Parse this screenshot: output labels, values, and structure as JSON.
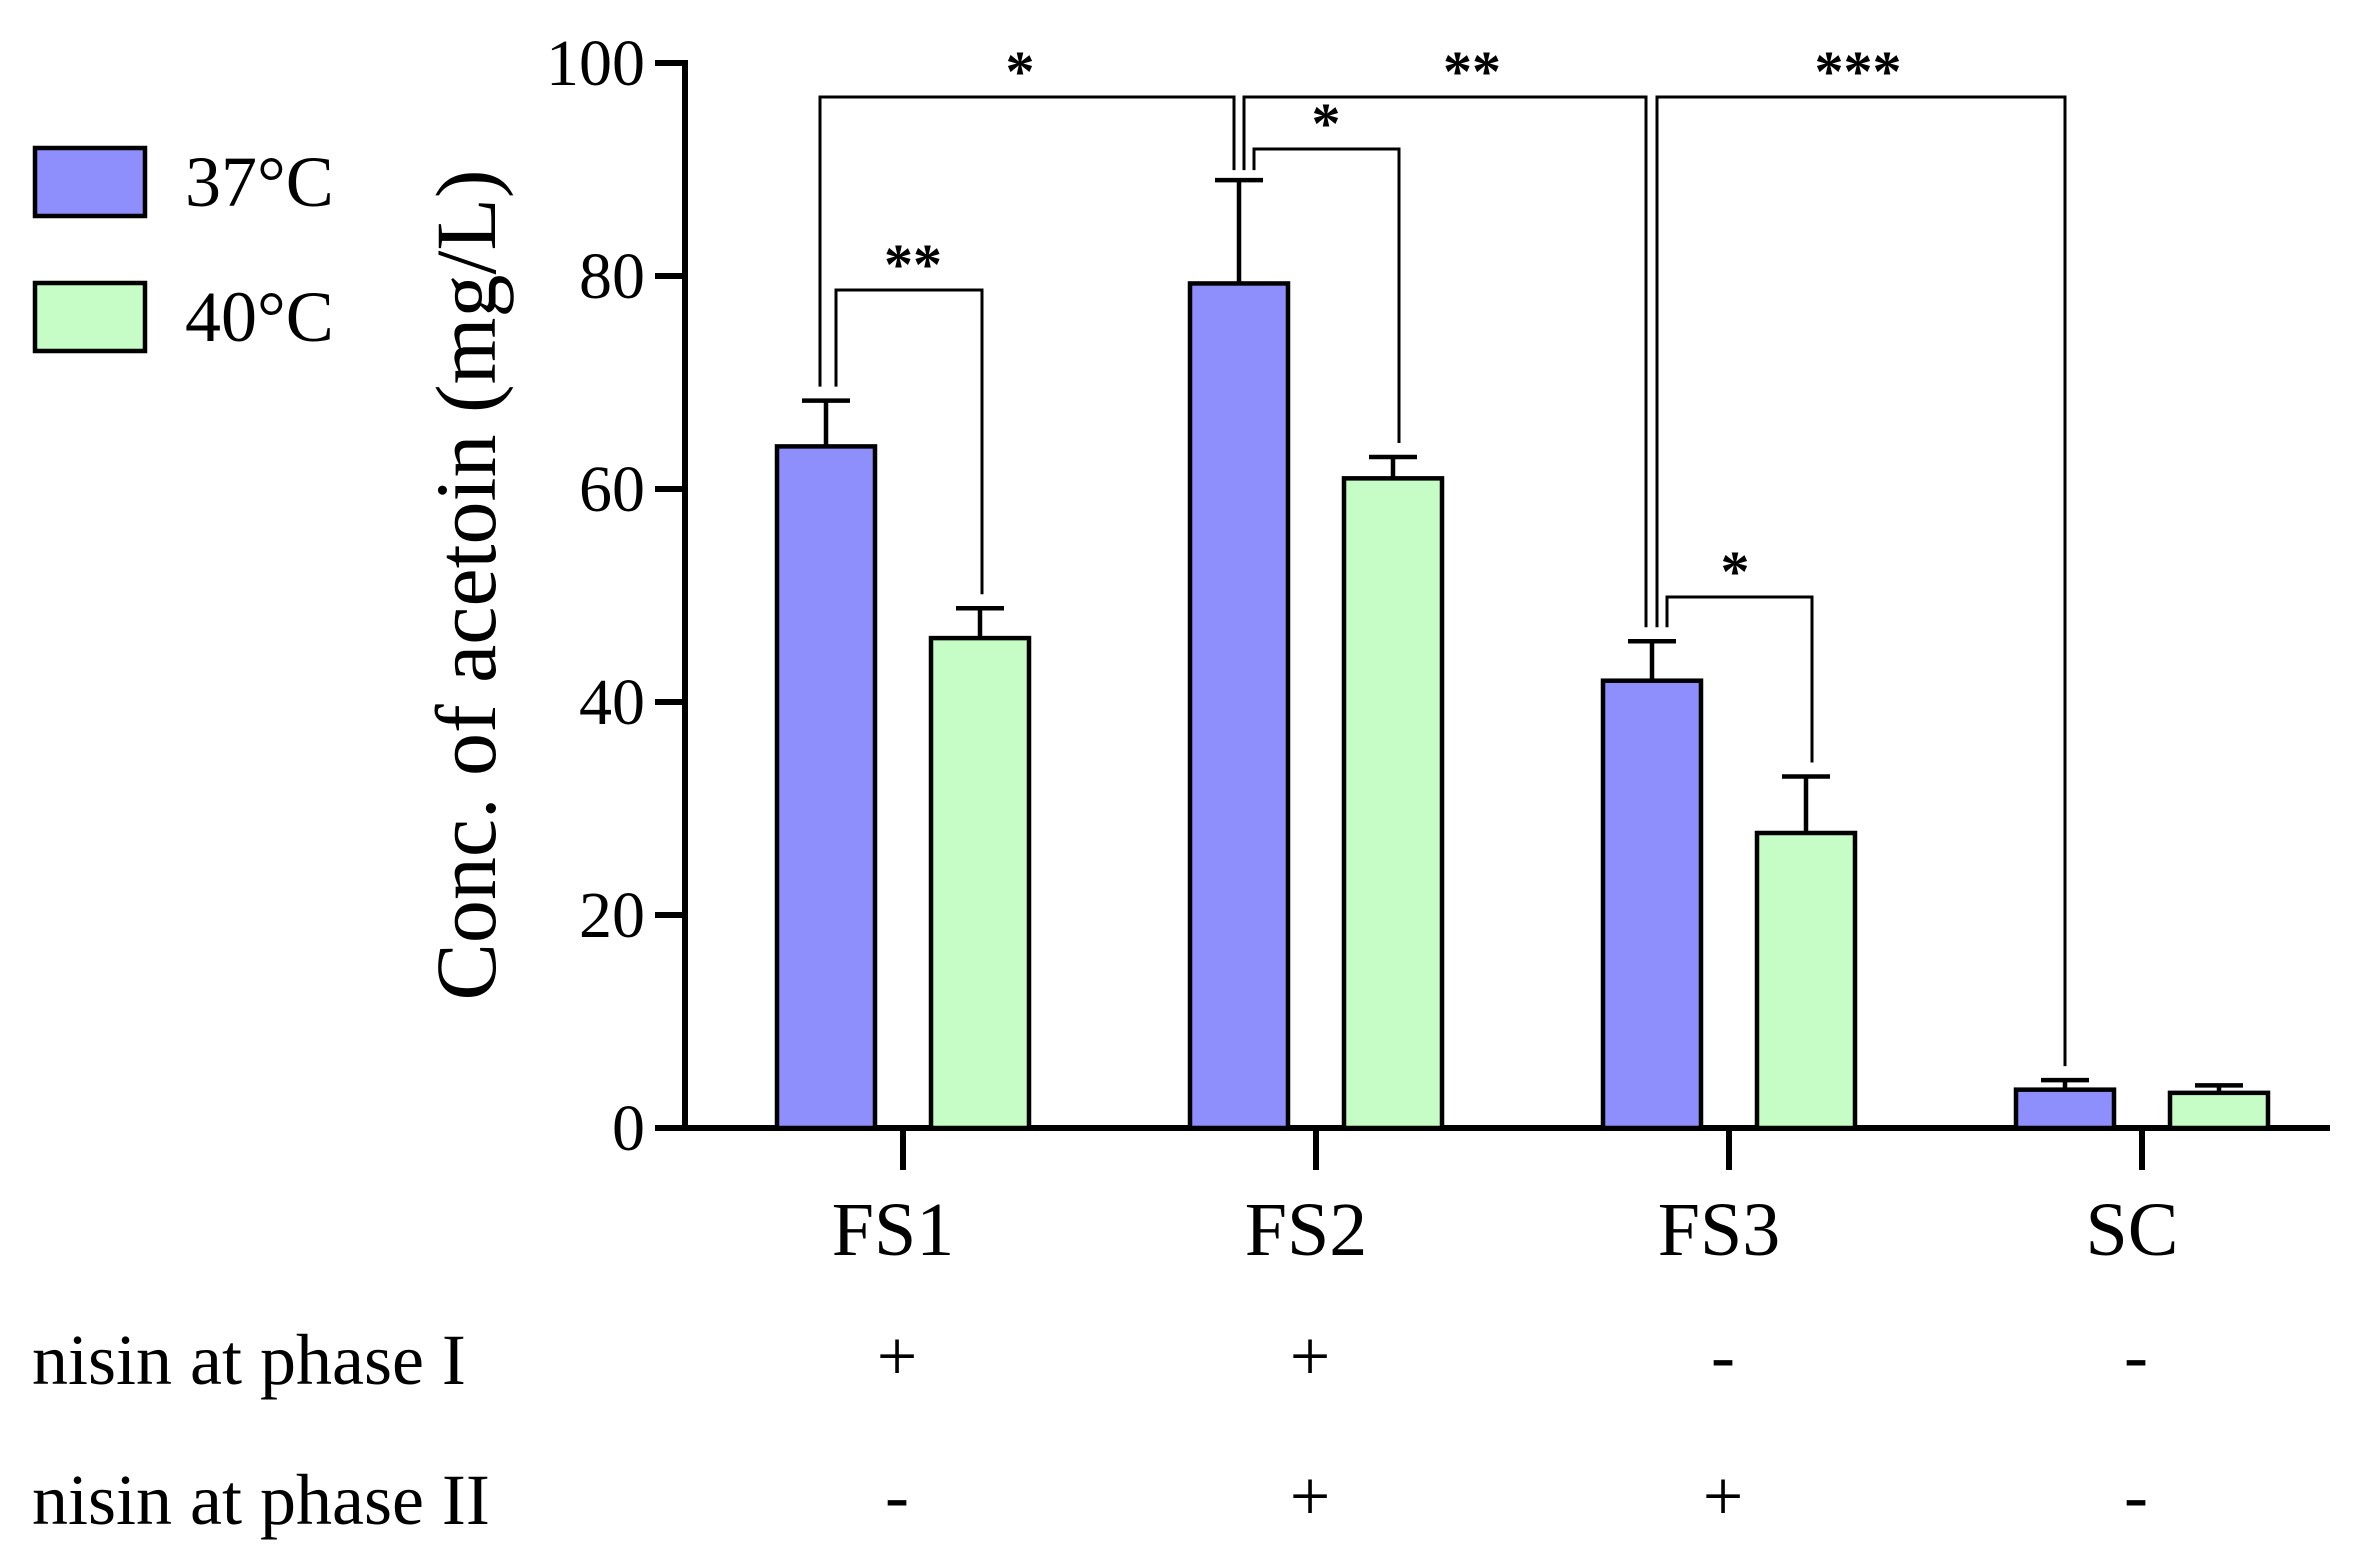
{
  "chart_data": {
    "type": "bar",
    "ylabel": "Conc. of acetoin (mg/L)",
    "ylim": [
      0,
      100
    ],
    "yticks": [
      0,
      20,
      40,
      60,
      80,
      100
    ],
    "categories": [
      "FS1",
      "FS2",
      "FS3",
      "SC"
    ],
    "series": [
      {
        "name": "37°C",
        "color": "#8e8efc",
        "values": [
          64,
          79.3,
          42,
          3.6
        ],
        "errors": [
          4.3,
          9.7,
          3.7,
          0.9
        ]
      },
      {
        "name": "40°C",
        "color": "#c6fcc6",
        "values": [
          46,
          61,
          27.7,
          3.3
        ],
        "errors": [
          2.8,
          2,
          5.3,
          0.7
        ]
      }
    ],
    "legend_position": "top-left",
    "conditions": [
      {
        "label": "nisin at phase I",
        "marks": [
          "+",
          "+",
          "-",
          "-"
        ]
      },
      {
        "label": "nisin at phase II",
        "marks": [
          "-",
          "+",
          "+",
          "-"
        ]
      }
    ],
    "significance": [
      {
        "label": "**",
        "from": "FS1-37°C",
        "to": "FS1-40°C"
      },
      {
        "label": "*",
        "from": "FS2-37°C",
        "to": "FS2-40°C"
      },
      {
        "label": "*",
        "from": "FS3-37°C",
        "to": "FS3-40°C"
      },
      {
        "label": "*",
        "from": "FS1-37°C",
        "to": "FS2-37°C"
      },
      {
        "label": "**",
        "from": "FS2-37°C",
        "to": "FS3-37°C"
      },
      {
        "label": "***",
        "from": "FS3-37°C",
        "to": "SC-37°C"
      }
    ]
  }
}
